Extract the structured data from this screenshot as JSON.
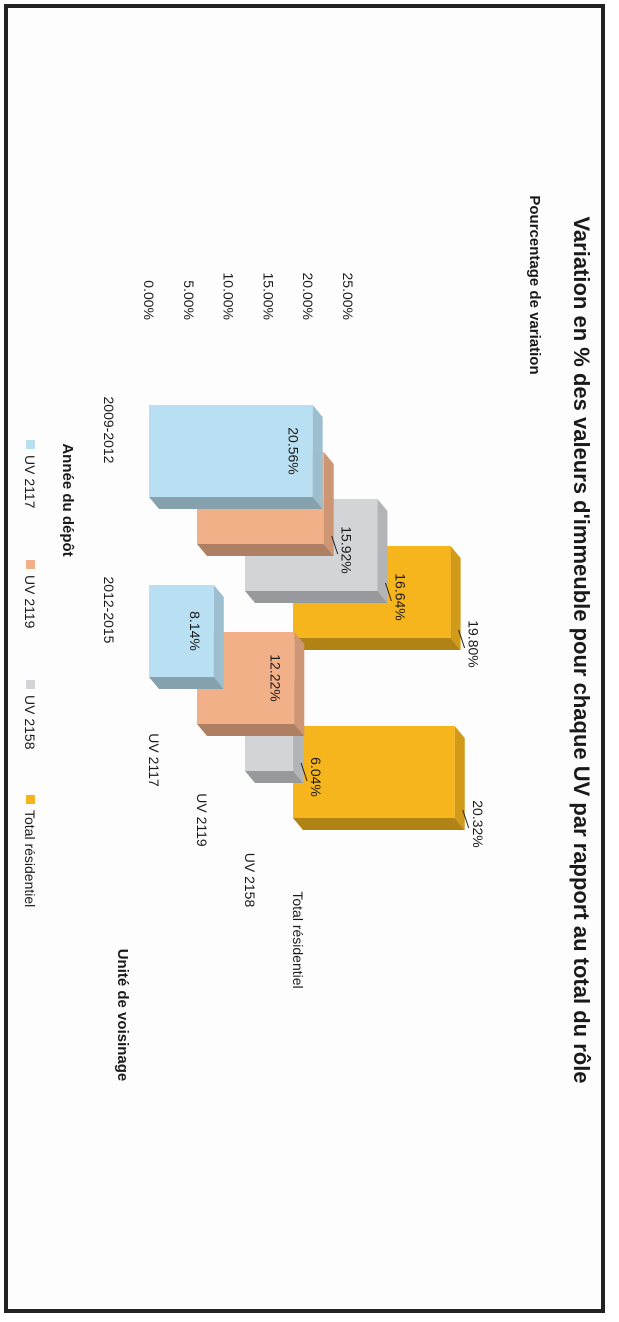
{
  "chart_data": {
    "type": "bar",
    "title": "Variation en % des valeurs d'immeuble pour chaque UV par rapport au total du rôle",
    "ylabel": "Pourcentage de variation",
    "xlabel": "Année du dépôt",
    "depth_axis_label": "Unité de voisinage",
    "categories": [
      "2009-2012",
      "2012-2015"
    ],
    "y_ticks": [
      "0.00%",
      "5.00%",
      "10.00%",
      "15.00%",
      "20.00%",
      "25.00%"
    ],
    "ylim": [
      0,
      25
    ],
    "series": [
      {
        "name": "UV 2117",
        "color": "#b9dff2",
        "values": [
          20.56,
          8.14
        ],
        "labels": [
          "20.56%",
          "8.14%"
        ]
      },
      {
        "name": "UV 2119",
        "color": "#f2b088",
        "values": [
          15.92,
          12.22
        ],
        "labels": [
          "15.92%",
          "12.22%"
        ]
      },
      {
        "name": "UV 2158",
        "color": "#d2d4d8",
        "values": [
          16.64,
          6.04
        ],
        "labels": [
          "16.64%",
          "6.04%"
        ]
      },
      {
        "name": "Total résidentiel",
        "color": "#f6b51c",
        "values": [
          19.8,
          20.32
        ],
        "labels": [
          "19.80%",
          "20.32%"
        ]
      }
    ],
    "depth_labels": [
      "UV 2117",
      "UV 2119",
      "UV 2158",
      "Total résidentiel"
    ],
    "legend_position": "bottom",
    "grid": false
  }
}
